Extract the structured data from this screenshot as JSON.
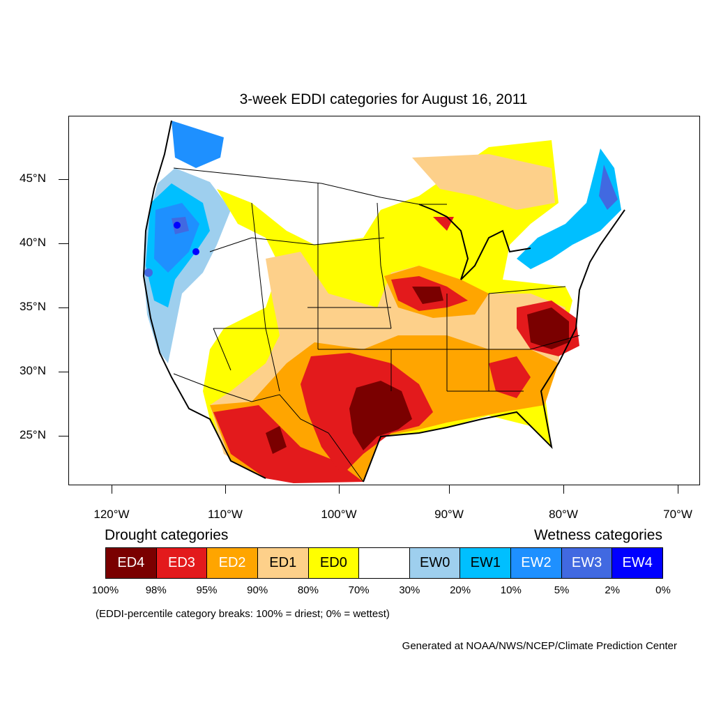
{
  "title": "3-week EDDI categories for August 16, 2011",
  "y_ticks": [
    "45°N",
    "40°N",
    "35°N",
    "30°N",
    "25°N"
  ],
  "x_ticks": [
    "120°W",
    "110°W",
    "100°W",
    "90°W",
    "80°W",
    "70°W"
  ],
  "legend": {
    "drought_heading": "Drought categories",
    "wetness_heading": "Wetness categories",
    "categories": [
      {
        "label": "ED4",
        "color": "#7a0000",
        "text_color": "#ffffff"
      },
      {
        "label": "ED3",
        "color": "#e31a1c",
        "text_color": "#ffffff"
      },
      {
        "label": "ED2",
        "color": "#ffa500",
        "text_color": "#ffffff"
      },
      {
        "label": "ED1",
        "color": "#fdd08a",
        "text_color": "#000000"
      },
      {
        "label": "ED0",
        "color": "#ffff00",
        "text_color": "#000000"
      },
      {
        "label": "",
        "color": "#ffffff",
        "text_color": "#000000"
      },
      {
        "label": "EW0",
        "color": "#9ecfee",
        "text_color": "#000000"
      },
      {
        "label": "EW1",
        "color": "#00bfff",
        "text_color": "#000000"
      },
      {
        "label": "EW2",
        "color": "#1e90ff",
        "text_color": "#ffffff"
      },
      {
        "label": "EW3",
        "color": "#4169e1",
        "text_color": "#ffffff"
      },
      {
        "label": "EW4",
        "color": "#0000ff",
        "text_color": "#ffffff"
      }
    ],
    "percent_breaks": [
      "100%",
      "98%",
      "95%",
      "90%",
      "80%",
      "70%",
      "30%",
      "20%",
      "10%",
      "5%",
      "2%",
      "0%"
    ]
  },
  "note": "(EDDI-percentile category breaks: 100% = driest; 0% = wettest)",
  "credit": "Generated at NOAA/NWS/NCEP/Climate Prediction Center"
}
